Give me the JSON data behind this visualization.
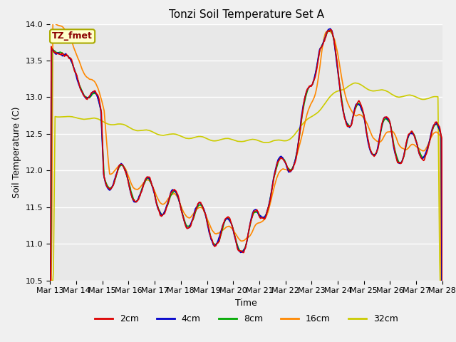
{
  "title": "Tonzi Soil Temperature Set A",
  "xlabel": "Time",
  "ylabel": "Soil Temperature (C)",
  "annotation": "TZ_fmet",
  "ylim": [
    10.5,
    14.0
  ],
  "fig_facecolor": "#f0f0f0",
  "plot_bg_color": "#e8e8e8",
  "series_colors": [
    "#dd0000",
    "#0000cc",
    "#00aa00",
    "#ff8800",
    "#cccc00"
  ],
  "series_labels": [
    "2cm",
    "4cm",
    "8cm",
    "16cm",
    "32cm"
  ],
  "xtick_labels": [
    "Mar 13",
    "Mar 14",
    "Mar 15",
    "Mar 16",
    "Mar 17",
    "Mar 18",
    "Mar 19",
    "Mar 20",
    "Mar 21",
    "Mar 22",
    "Mar 23",
    "Mar 24",
    "Mar 25",
    "Mar 26",
    "Mar 27",
    "Mar 28"
  ],
  "ytick_vals": [
    10.5,
    11.0,
    11.5,
    12.0,
    12.5,
    13.0,
    13.5,
    14.0
  ],
  "n_points": 720,
  "n_days": 15
}
